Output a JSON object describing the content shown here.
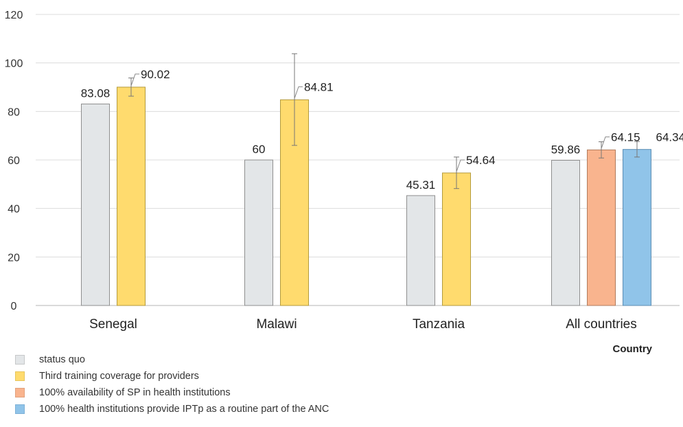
{
  "chart_data": {
    "type": "bar",
    "xlabel": "Country",
    "ylabel": "",
    "ylim": [
      0,
      120
    ],
    "yticks": [
      0,
      20,
      40,
      60,
      80,
      100,
      120
    ],
    "grid": true,
    "legend_position": "bottom-left",
    "categories": [
      "Senegal",
      "Malawi",
      "Tanzania",
      "All countries"
    ],
    "series": [
      {
        "name": "status quo",
        "color": "#e3e6e8",
        "stroke": "#8e8e8e",
        "values": [
          83.08,
          60,
          45.31,
          59.86
        ],
        "labels": [
          "83.08",
          "60",
          "45.31",
          "59.86"
        ],
        "error_low": [
          null,
          null,
          null,
          null
        ],
        "error_high": [
          null,
          null,
          null,
          null
        ]
      },
      {
        "name": "Third training coverage for providers",
        "color": "#ffdb6e",
        "stroke": "#b39a3c",
        "values": [
          90.02,
          84.81,
          54.64,
          null
        ],
        "labels": [
          "90.02",
          "84.81",
          "54.64",
          ""
        ],
        "error_low": [
          86.3,
          66,
          48.2,
          null
        ],
        "error_high": [
          93.8,
          103.8,
          61.2,
          null
        ]
      },
      {
        "name": "100% availability of SP in health institutions",
        "color": "#f9b48e",
        "stroke": "#b07b5d",
        "values": [
          null,
          null,
          null,
          64.15
        ],
        "labels": [
          "",
          "",
          "",
          "64.15"
        ],
        "error_low": [
          null,
          null,
          null,
          60.8
        ],
        "error_high": [
          null,
          null,
          null,
          67.5
        ]
      },
      {
        "name": "100% health institutions provide IPTp as a routine part of the ANC",
        "color": "#90c4e9",
        "stroke": "#5b8db3",
        "values": [
          null,
          null,
          null,
          64.34
        ],
        "labels": [
          "",
          "",
          "",
          "64.34"
        ],
        "error_low": [
          null,
          null,
          null,
          61.2
        ],
        "error_high": [
          null,
          null,
          null,
          67.6
        ]
      }
    ]
  }
}
